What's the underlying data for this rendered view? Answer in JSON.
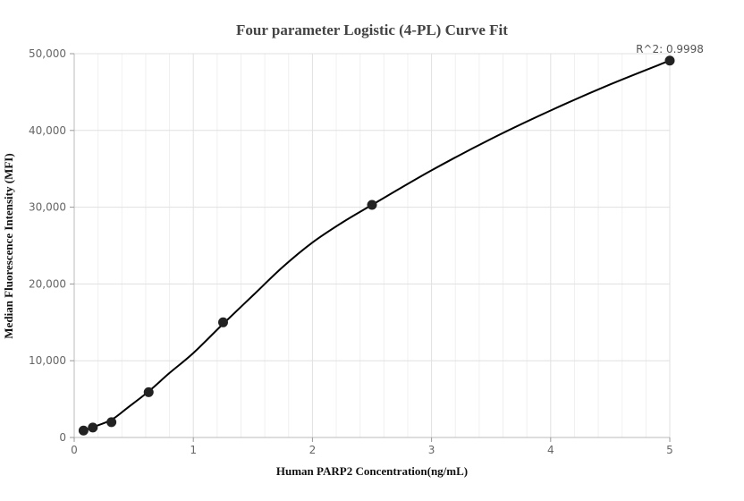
{
  "chart_data": {
    "type": "scatter",
    "title": "Four parameter Logistic (4-PL) Curve Fit",
    "xlabel": "Human PARP2 Concentration(ng/mL)",
    "ylabel": "Median Fluorescence Intensity (MFI)",
    "xlim": [
      0,
      5
    ],
    "ylim": [
      0,
      50000
    ],
    "x_ticks": [
      0,
      1,
      2,
      3,
      4,
      5
    ],
    "y_ticks": [
      0,
      10000,
      20000,
      30000,
      40000,
      50000
    ],
    "x_tick_labels": [
      "0",
      "1",
      "2",
      "3",
      "4",
      "5"
    ],
    "y_tick_labels": [
      "0",
      "10,000",
      "20,000",
      "30,000",
      "40,000",
      "50,000"
    ],
    "grid": true,
    "annotation": "R^2: 0.9998",
    "series": [
      {
        "points": [
          {
            "x": 0.078,
            "y": 900
          },
          {
            "x": 0.156,
            "y": 1300
          },
          {
            "x": 0.3125,
            "y": 2000
          },
          {
            "x": 0.625,
            "y": 5900
          },
          {
            "x": 1.25,
            "y": 15000
          },
          {
            "x": 2.5,
            "y": 30300
          },
          {
            "x": 5,
            "y": 49100
          }
        ]
      }
    ],
    "fit_curve": [
      {
        "x": 0.078,
        "y": 900
      },
      {
        "x": 0.156,
        "y": 1350
      },
      {
        "x": 0.3125,
        "y": 2300
      },
      {
        "x": 0.45,
        "y": 3900
      },
      {
        "x": 0.625,
        "y": 6000
      },
      {
        "x": 0.8,
        "y": 8400
      },
      {
        "x": 1.0,
        "y": 11000
      },
      {
        "x": 1.25,
        "y": 14800
      },
      {
        "x": 1.5,
        "y": 18500
      },
      {
        "x": 1.75,
        "y": 22200
      },
      {
        "x": 2.0,
        "y": 25400
      },
      {
        "x": 2.25,
        "y": 28000
      },
      {
        "x": 2.5,
        "y": 30300
      },
      {
        "x": 3.0,
        "y": 34800
      },
      {
        "x": 3.5,
        "y": 38900
      },
      {
        "x": 4.0,
        "y": 42600
      },
      {
        "x": 4.5,
        "y": 46000
      },
      {
        "x": 5.0,
        "y": 49100
      }
    ]
  }
}
